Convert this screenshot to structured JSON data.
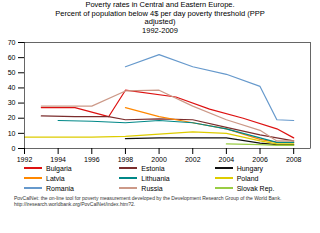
{
  "chart_data": {
    "type": "line",
    "title": "Poverty rates in Central and Eastern Europe.\nPercent of population below 4$ per day poverty threshold (PPP\nadjusted)\n1992-2009",
    "footnote": "PovCalNet: the on-line tool for poverty measurement developed by the Development Research Group of the World Bank.\nhttp://iresearch.worldbank.org/PovCalNet/index.htm?2.",
    "series": [
      {
        "name": "Bulgaria",
        "color": "#dd1111",
        "x": [
          1993,
          1995,
          1997,
          1998,
          2001,
          2003,
          2005,
          2007,
          2008
        ],
        "values": [
          27.0,
          27.0,
          21.0,
          38.5,
          34.0,
          26.0,
          20.0,
          13.0,
          7.0
        ]
      },
      {
        "name": "Estonia",
        "color": "#7b2d2d",
        "x": [
          1993,
          1995,
          1997,
          1998,
          2000,
          2002,
          2004,
          2006,
          2008
        ],
        "values": [
          21.5,
          21.0,
          21.0,
          19.0,
          19.5,
          19.0,
          14.0,
          9.0,
          5.0
        ]
      },
      {
        "name": "Hungary",
        "color": "#111111",
        "x": [
          1998,
          2000,
          2002,
          2004,
          2006,
          2007,
          2008
        ],
        "values": [
          6.5,
          7.0,
          7.0,
          7.0,
          3.5,
          2.5,
          2.5
        ]
      },
      {
        "name": "Latvia",
        "color": "#ff8800",
        "x": [
          1998,
          2000,
          2002,
          2004,
          2006,
          2007,
          2008
        ],
        "values": [
          27.0,
          21.0,
          17.0,
          13.0,
          6.0,
          4.0,
          4.0
        ]
      },
      {
        "name": "Lithuania",
        "color": "#008888",
        "x": [
          1994,
          1996,
          1998,
          2000,
          2002,
          2004,
          2006,
          2007,
          2008
        ],
        "values": [
          18.5,
          18.0,
          17.0,
          18.5,
          17.0,
          13.0,
          7.0,
          4.0,
          4.0
        ]
      },
      {
        "name": "Poland",
        "color": "#ddcc00",
        "x": [
          1992,
          1994,
          1996,
          1998,
          2000,
          2002,
          2004,
          2006,
          2007,
          2008
        ],
        "values": [
          7.5,
          7.5,
          7.5,
          8.0,
          9.5,
          11.0,
          10.0,
          5.0,
          3.0,
          3.0
        ]
      },
      {
        "name": "Romania",
        "color": "#6699cc",
        "x": [
          1998,
          2000,
          2002,
          2004,
          2006,
          2007,
          2008
        ],
        "values": [
          54.0,
          62.0,
          54.0,
          49.0,
          41.0,
          19.0,
          18.5
        ]
      },
      {
        "name": "Russia",
        "color": "#cc9988",
        "x": [
          1993,
          1996,
          1998,
          2000,
          2002,
          2004,
          2006,
          2007,
          2008
        ],
        "values": [
          28.0,
          28.0,
          38.0,
          38.5,
          28.0,
          19.0,
          12.0,
          5.0,
          5.0
        ]
      },
      {
        "name": "Slovak Rep.",
        "color": "#99cc44",
        "x": [
          2004,
          2006,
          2007,
          2008
        ],
        "values": [
          3.0,
          2.5,
          2.0,
          2.0
        ]
      }
    ],
    "xlim": [
      1992,
      2009
    ],
    "xticks": [
      1992,
      1994,
      1996,
      1998,
      2000,
      2002,
      2004,
      2006,
      2008
    ],
    "ylim": [
      0,
      70
    ],
    "yticks": [
      0,
      10,
      20,
      30,
      40,
      50,
      60,
      70
    ],
    "grid": false
  }
}
